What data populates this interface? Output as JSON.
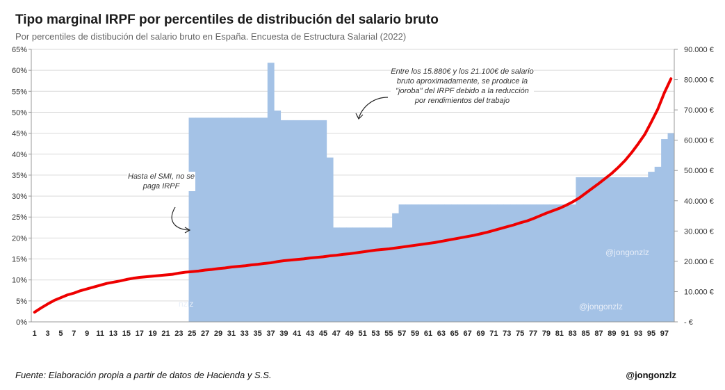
{
  "title": "Tipo marginal IRPF por percentiles de distribución del salario bruto",
  "subtitle": "Por percentiles de distibución del salario bruto en España. Encuesta de Estructura Salarial (2022)",
  "annotations": {
    "smi": "Hasta el SMI, no se paga IRPF",
    "joroba": "Entre los 15.880€ y los 21.100€ de salario bruto aproximadamente, se produce la \"joroba\" del IRPF debido a la reducción por rendimientos del trabajo"
  },
  "footer": {
    "source": "Fuente: Elaboración propia a partir de datos de Hacienda y S.S.",
    "handle": "@jongonzlz"
  },
  "watermarks": [
    "@jongonzlz",
    "@jongonzlz",
    "nzlz"
  ],
  "chart_data": {
    "type": "bar",
    "x_ticks_shown": [
      "1",
      "3",
      "5",
      "7",
      "9",
      "11",
      "13",
      "15",
      "17",
      "19",
      "21",
      "23",
      "25",
      "27",
      "29",
      "31",
      "33",
      "35",
      "37",
      "39",
      "41",
      "43",
      "45",
      "47",
      "49",
      "51",
      "53",
      "55",
      "57",
      "59",
      "61",
      "63",
      "65",
      "67",
      "69",
      "71",
      "73",
      "75",
      "77",
      "79",
      "81",
      "83",
      "85",
      "87",
      "89",
      "91",
      "93",
      "95",
      "97"
    ],
    "y_left": {
      "min": 0,
      "max": 65,
      "ticks": [
        "0%",
        "5%",
        "10%",
        "15%",
        "20%",
        "25%",
        "30%",
        "35%",
        "40%",
        "45%",
        "50%",
        "55%",
        "60%",
        "65%"
      ]
    },
    "y_right": {
      "min": 0,
      "max": 90000,
      "ticks": [
        "-   €",
        "10.000 €",
        "20.000 €",
        "30.000 €",
        "40.000 €",
        "50.000 €",
        "60.000 €",
        "70.000 €",
        "80.000 €",
        "90.000 €"
      ]
    },
    "grid": true,
    "series": [
      {
        "axis": "left",
        "color": "#a4c2e6",
        "percentiles": [
          1,
          2,
          3,
          4,
          5,
          6,
          7,
          8,
          9,
          10,
          11,
          12,
          13,
          14,
          15,
          16,
          17,
          18,
          19,
          20,
          21,
          22,
          23,
          24,
          25,
          26,
          27,
          28,
          29,
          30,
          31,
          32,
          33,
          34,
          35,
          36,
          37,
          38,
          39,
          40,
          41,
          42,
          43,
          44,
          45,
          46,
          47,
          48,
          49,
          50,
          51,
          52,
          53,
          54,
          55,
          56,
          57,
          58,
          59,
          60,
          61,
          62,
          63,
          64,
          65,
          66,
          67,
          68,
          69,
          70,
          71,
          72,
          73,
          74,
          75,
          76,
          77,
          78,
          79,
          80,
          81,
          82,
          83,
          84,
          85,
          86,
          87,
          88,
          89,
          90,
          91,
          92,
          93,
          94,
          95,
          96,
          97,
          98
        ],
        "values": [
          0,
          0,
          0,
          0,
          0,
          0,
          0,
          0,
          0,
          0,
          0,
          0,
          0,
          0,
          0,
          0,
          0,
          0,
          0,
          0,
          0,
          0,
          0,
          0,
          48.7,
          48.7,
          48.7,
          48.7,
          48.7,
          48.7,
          48.7,
          48.7,
          48.7,
          48.7,
          48.7,
          48.7,
          61.8,
          50.4,
          48.1,
          48.1,
          48.1,
          48.1,
          48.1,
          48.1,
          48.1,
          39.2,
          22.5,
          22.5,
          22.5,
          22.5,
          22.5,
          22.5,
          22.5,
          22.5,
          22.5,
          25.9,
          28.0,
          28.0,
          28.0,
          28.0,
          28.0,
          28.0,
          28.0,
          28.0,
          28.0,
          28.0,
          28.0,
          28.0,
          28.0,
          28.0,
          28.0,
          28.0,
          28.0,
          28.0,
          28.0,
          28.0,
          28.0,
          28.0,
          28.0,
          28.0,
          28.0,
          28.0,
          28.0,
          34.5,
          34.5,
          34.5,
          34.5,
          34.5,
          34.5,
          34.5,
          34.5,
          34.5,
          34.5,
          34.5,
          35.8,
          37.0,
          43.6,
          45.0
        ]
      },
      {
        "axis": "right",
        "color": "#ee0000",
        "percentiles": [
          1,
          2,
          3,
          4,
          5,
          6,
          7,
          8,
          9,
          10,
          11,
          12,
          13,
          14,
          15,
          16,
          17,
          18,
          19,
          20,
          21,
          22,
          23,
          24,
          25,
          26,
          27,
          28,
          29,
          30,
          31,
          32,
          33,
          34,
          35,
          36,
          37,
          38,
          39,
          40,
          41,
          42,
          43,
          44,
          45,
          46,
          47,
          48,
          49,
          50,
          51,
          52,
          53,
          54,
          55,
          56,
          57,
          58,
          59,
          60,
          61,
          62,
          63,
          64,
          65,
          66,
          67,
          68,
          69,
          70,
          71,
          72,
          73,
          74,
          75,
          76,
          77,
          78,
          79,
          80,
          81,
          82,
          83,
          84,
          85,
          86,
          87,
          88,
          89,
          90,
          91,
          92,
          93,
          94,
          95,
          96,
          97,
          98
        ],
        "values": [
          3200,
          4600,
          5900,
          7100,
          8000,
          8900,
          9500,
          10300,
          10900,
          11500,
          12100,
          12700,
          13100,
          13500,
          14000,
          14400,
          14700,
          14900,
          15100,
          15300,
          15500,
          15700,
          16100,
          16400,
          16600,
          16800,
          17100,
          17300,
          17600,
          17800,
          18100,
          18300,
          18500,
          18800,
          19000,
          19300,
          19500,
          19900,
          20200,
          20400,
          20600,
          20800,
          21100,
          21300,
          21500,
          21800,
          22000,
          22300,
          22500,
          22800,
          23100,
          23400,
          23700,
          23900,
          24100,
          24400,
          24700,
          25000,
          25300,
          25600,
          25900,
          26200,
          26600,
          27000,
          27400,
          27800,
          28200,
          28600,
          29100,
          29600,
          30200,
          30800,
          31400,
          32000,
          32700,
          33300,
          34100,
          35000,
          35900,
          36700,
          37500,
          38500,
          39600,
          40900,
          42500,
          44100,
          45700,
          47400,
          49100,
          51100,
          53300,
          55900,
          58800,
          61900,
          66000,
          70300,
          75700,
          80300
        ]
      }
    ]
  }
}
